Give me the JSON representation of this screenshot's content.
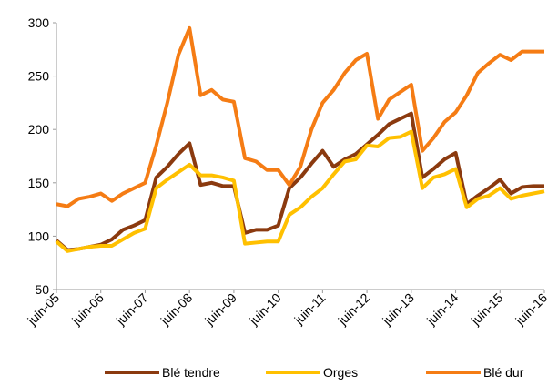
{
  "chart_data": {
    "type": "line",
    "categories": [
      "juin-05",
      null,
      null,
      null,
      "juin-06",
      null,
      null,
      null,
      "juin-07",
      null,
      null,
      null,
      "juin-08",
      null,
      null,
      null,
      "juin-09",
      null,
      null,
      null,
      "juin-10",
      null,
      null,
      null,
      "juin-11",
      null,
      null,
      null,
      "juin-12",
      null,
      null,
      null,
      "juin-13",
      null,
      null,
      null,
      "juin-14",
      null,
      null,
      null,
      "juin-15",
      null,
      null,
      null,
      "juin-16"
    ],
    "series": [
      {
        "name": "Blé tendre",
        "color": "#8b3a0f",
        "values": [
          96,
          87,
          88,
          90,
          92,
          97,
          106,
          110,
          115,
          155,
          165,
          177,
          187,
          148,
          150,
          147,
          147,
          103,
          106,
          106,
          110,
          145,
          155,
          168,
          180,
          165,
          172,
          177,
          186,
          195,
          205,
          210,
          215,
          155,
          163,
          172,
          178,
          130,
          138,
          145,
          153,
          140,
          146,
          147,
          147
        ]
      },
      {
        "name": "Orges",
        "color": "#ffc000",
        "values": [
          95,
          86,
          88,
          90,
          91,
          91,
          97,
          103,
          107,
          145,
          153,
          160,
          167,
          157,
          157,
          155,
          152,
          93,
          94,
          95,
          95,
          120,
          127,
          137,
          145,
          158,
          170,
          172,
          185,
          184,
          192,
          193,
          198,
          145,
          155,
          158,
          163,
          127,
          135,
          138,
          145,
          135,
          138,
          140,
          142
        ]
      },
      {
        "name": "Blé dur",
        "color": "#f57c14",
        "values": [
          130,
          128,
          135,
          137,
          140,
          133,
          140,
          145,
          150,
          185,
          225,
          270,
          295,
          232,
          237,
          228,
          226,
          173,
          170,
          162,
          162,
          148,
          165,
          200,
          225,
          237,
          253,
          265,
          271,
          210,
          228,
          235,
          242,
          180,
          192,
          207,
          216,
          232,
          253,
          262,
          270,
          265,
          273,
          273,
          273
        ]
      }
    ],
    "ylim": [
      50,
      300
    ],
    "yticks": [
      50,
      100,
      150,
      200,
      250,
      300
    ],
    "grid": false,
    "legend": "bottom"
  }
}
